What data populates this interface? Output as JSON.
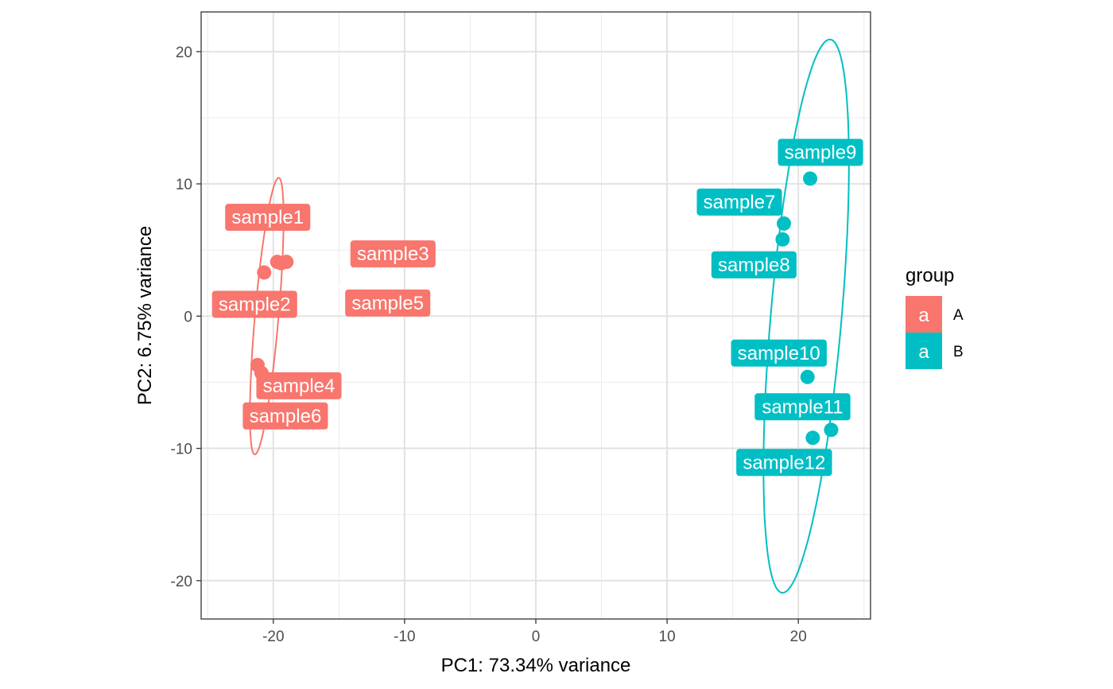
{
  "chart_data": {
    "type": "scatter",
    "title": "",
    "xlabel": "PC1: 73.34% variance",
    "ylabel": "PC2: 6.75% variance",
    "xlim": [
      -25.5,
      25.5
    ],
    "ylim": [
      -22.9,
      23.0
    ],
    "x_ticks": [
      -20,
      -10,
      0,
      10,
      20
    ],
    "x_tick_labels": [
      "-20",
      "-10",
      "0",
      "10",
      "20"
    ],
    "y_ticks": [
      -20,
      -10,
      0,
      10,
      20
    ],
    "y_tick_labels": [
      "-20",
      "-10",
      "0",
      "10",
      "20"
    ],
    "grid": true,
    "legend": {
      "title": "group",
      "position": "right",
      "key_glyph": "a",
      "entries": [
        {
          "label": "A",
          "color": "#F8766D"
        },
        {
          "label": "B",
          "color": "#00BFC4"
        }
      ]
    },
    "series": [
      {
        "name": "A",
        "color": "#F8766D",
        "points": [
          {
            "label": "sample1",
            "x": -19.7,
            "y": 4.1
          },
          {
            "label": "sample2",
            "x": -20.7,
            "y": 3.3
          },
          {
            "label": "sample3",
            "x": -19.0,
            "y": 4.1
          },
          {
            "label": "sample4",
            "x": -21.2,
            "y": -3.7
          },
          {
            "label": "sample5",
            "x": -19.4,
            "y": 4.0
          },
          {
            "label": "sample6",
            "x": -20.9,
            "y": -4.3
          }
        ],
        "ellipse": {
          "center": [
            -20.5,
            0.0
          ],
          "semi_x": 0.9,
          "semi_y": 10.5,
          "tilt_deg": 5
        }
      },
      {
        "name": "B",
        "color": "#00BFC4",
        "points": [
          {
            "label": "sample7",
            "x": 18.9,
            "y": 7.0
          },
          {
            "label": "sample8",
            "x": 18.8,
            "y": 5.8
          },
          {
            "label": "sample9",
            "x": 20.9,
            "y": 10.4
          },
          {
            "label": "sample10",
            "x": 20.7,
            "y": -4.6
          },
          {
            "label": "sample11",
            "x": 22.5,
            "y": -8.6
          },
          {
            "label": "sample12",
            "x": 21.1,
            "y": -9.2
          }
        ],
        "ellipse": {
          "center": [
            20.6,
            0.0
          ],
          "semi_x": 2.7,
          "semi_y": 21.0,
          "tilt_deg": 5
        }
      }
    ]
  }
}
